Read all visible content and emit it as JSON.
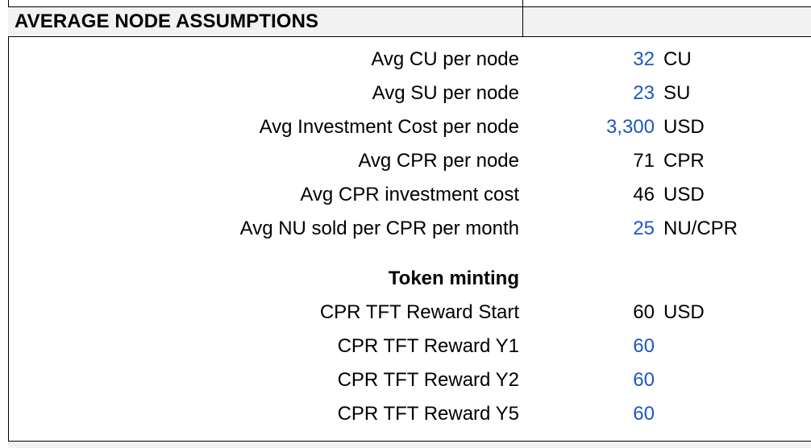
{
  "colors": {
    "input_blue": "#1f56c2",
    "calc_black": "#000000",
    "header_bg": "#f2f2f2"
  },
  "section": {
    "title": "AVERAGE NODE ASSUMPTIONS",
    "rows": [
      {
        "label": "Avg CU per node",
        "value": "32",
        "unit": "CU",
        "input": true
      },
      {
        "label": "Avg SU per node",
        "value": "23",
        "unit": "SU",
        "input": true
      },
      {
        "label": "Avg Investment Cost per node",
        "value": "3,300",
        "unit": "USD",
        "input": true
      },
      {
        "label": "Avg CPR per node",
        "value": "71",
        "unit": "CPR",
        "input": false
      },
      {
        "label": "Avg CPR investment cost",
        "value": "46",
        "unit": "USD",
        "input": false
      },
      {
        "label": "Avg NU sold per CPR per month",
        "value": "25",
        "unit": "NU/CPR",
        "input": true
      }
    ]
  },
  "token_minting": {
    "title": "Token minting",
    "rows": [
      {
        "label": "CPR TFT Reward Start",
        "value": "60",
        "unit": "USD",
        "input": false
      },
      {
        "label": "CPR TFT Reward Y1",
        "value": "60",
        "unit": "",
        "input": true
      },
      {
        "label": "CPR TFT Reward Y2",
        "value": "60",
        "unit": "",
        "input": true
      },
      {
        "label": "CPR TFT Reward Y5",
        "value": "60",
        "unit": "",
        "input": true
      }
    ]
  }
}
